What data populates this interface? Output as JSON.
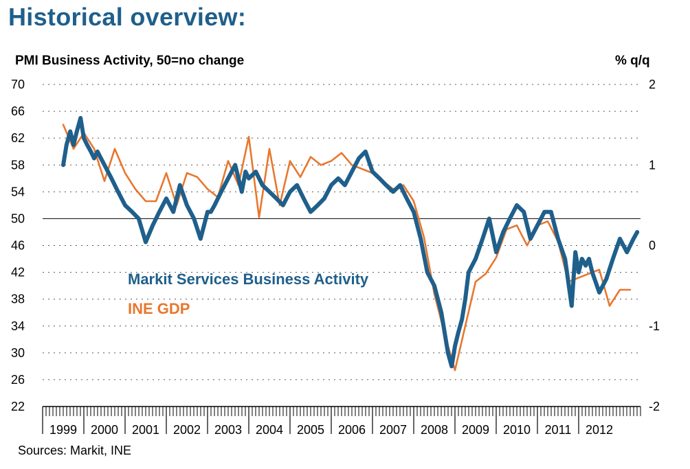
{
  "page": {
    "title": "Historical overview:",
    "sources": "Sources: Markit, INE"
  },
  "chart_data": {
    "type": "line",
    "ylabel": "PMI Business Activity, 50=no change",
    "y2label": "% q/q",
    "ylim": [
      22,
      70
    ],
    "yticks": [
      70,
      66,
      62,
      58,
      54,
      50,
      46,
      42,
      38,
      34,
      30,
      26,
      22
    ],
    "y2lim": [
      -2,
      2
    ],
    "y2ticks": [
      2,
      1,
      0,
      -1,
      -2
    ],
    "reference_line": 50,
    "x_categories": [
      "1999",
      "2000",
      "2001",
      "2002",
      "2003",
      "2004",
      "2005",
      "2006",
      "2007",
      "2008",
      "2009",
      "2010",
      "2011",
      "2012"
    ],
    "grid": "dotted horizontal",
    "colors": {
      "services": "#1f5f8b",
      "gdp": "#e8772e",
      "title": "#1f5f8b"
    },
    "series": [
      {
        "name": "Markit Services Business Activity",
        "axis": "left",
        "x": [
          1999.5,
          1999.58,
          1999.67,
          1999.75,
          1999.83,
          1999.92,
          2000.0,
          2000.08,
          2000.17,
          2000.25,
          2000.33,
          2000.5,
          2000.67,
          2000.83,
          2001.0,
          2001.17,
          2001.33,
          2001.5,
          2001.67,
          2001.75,
          2001.83,
          2002.0,
          2002.17,
          2002.33,
          2002.5,
          2002.67,
          2002.83,
          2003.0,
          2003.08,
          2003.17,
          2003.33,
          2003.5,
          2003.67,
          2003.83,
          2003.92,
          2004.0,
          2004.17,
          2004.33,
          2004.5,
          2004.67,
          2004.83,
          2005.0,
          2005.17,
          2005.33,
          2005.5,
          2005.67,
          2005.83,
          2006.0,
          2006.17,
          2006.33,
          2006.5,
          2006.67,
          2006.83,
          2007.0,
          2007.17,
          2007.33,
          2007.5,
          2007.67,
          2007.83,
          2008.0,
          2008.17,
          2008.33,
          2008.5,
          2008.67,
          2008.75,
          2008.83,
          2008.92,
          2009.0,
          2009.08,
          2009.17,
          2009.25,
          2009.33,
          2009.5,
          2009.67,
          2009.83,
          2010.0,
          2010.17,
          2010.33,
          2010.5,
          2010.67,
          2010.83,
          2011.0,
          2011.17,
          2011.33,
          2011.5,
          2011.67,
          2011.83,
          2011.92,
          2012.0,
          2012.08,
          2012.17,
          2012.25,
          2012.33,
          2012.5,
          2012.67,
          2012.83,
          2013.0,
          2013.17,
          2013.33,
          2013.42
        ],
        "values": [
          58,
          61,
          63,
          61,
          63,
          65,
          62,
          61,
          60,
          59,
          60,
          58,
          56,
          54,
          52,
          51,
          50,
          46.5,
          49,
          50,
          51,
          53,
          51,
          55,
          52,
          50,
          47,
          51,
          51,
          52,
          54,
          56,
          58,
          54,
          57,
          56,
          57,
          55,
          54,
          53,
          52,
          54,
          55,
          53,
          51,
          52,
          53,
          55,
          56,
          55,
          57,
          59,
          60,
          57,
          56,
          55,
          54,
          55,
          53,
          51,
          47,
          42,
          40,
          36,
          33,
          30,
          28,
          31,
          33,
          35,
          38,
          42,
          44,
          47,
          50,
          45,
          48,
          50,
          52,
          51,
          47,
          49,
          51,
          51,
          47,
          44,
          37,
          45,
          42,
          44,
          43,
          44,
          42,
          39,
          41,
          44,
          47,
          45,
          47,
          48
        ]
      },
      {
        "name": "INE GDP",
        "axis": "right",
        "x": [
          1999.5,
          1999.75,
          2000.0,
          2000.25,
          2000.5,
          2000.75,
          2001.0,
          2001.25,
          2001.5,
          2001.75,
          2002.0,
          2002.25,
          2002.5,
          2002.75,
          2003.0,
          2003.25,
          2003.5,
          2003.75,
          2004.0,
          2004.25,
          2004.5,
          2004.75,
          2005.0,
          2005.25,
          2005.5,
          2005.75,
          2006.0,
          2006.25,
          2006.5,
          2006.75,
          2007.0,
          2007.25,
          2007.5,
          2007.75,
          2008.0,
          2008.25,
          2008.5,
          2008.75,
          2009.0,
          2009.25,
          2009.5,
          2009.75,
          2010.0,
          2010.25,
          2010.5,
          2010.75,
          2011.0,
          2011.25,
          2011.5,
          2011.75,
          2012.0,
          2012.25,
          2012.5,
          2012.75,
          2013.0,
          2013.25
        ],
        "values": [
          1.5,
          1.2,
          1.4,
          1.2,
          0.8,
          1.2,
          0.9,
          0.7,
          0.55,
          0.55,
          0.9,
          0.5,
          0.9,
          0.85,
          0.7,
          0.6,
          1.05,
          0.75,
          1.35,
          0.35,
          1.2,
          0.5,
          1.05,
          0.85,
          1.1,
          1.0,
          1.05,
          1.15,
          1.0,
          0.95,
          0.9,
          0.8,
          0.7,
          0.75,
          0.55,
          0.1,
          -0.6,
          -1.1,
          -1.55,
          -1.0,
          -0.45,
          -0.35,
          -0.15,
          0.2,
          0.25,
          0.0,
          0.25,
          0.3,
          0.05,
          -0.45,
          -0.4,
          -0.35,
          -0.3,
          -0.75,
          -0.55,
          -0.55
        ]
      }
    ]
  }
}
